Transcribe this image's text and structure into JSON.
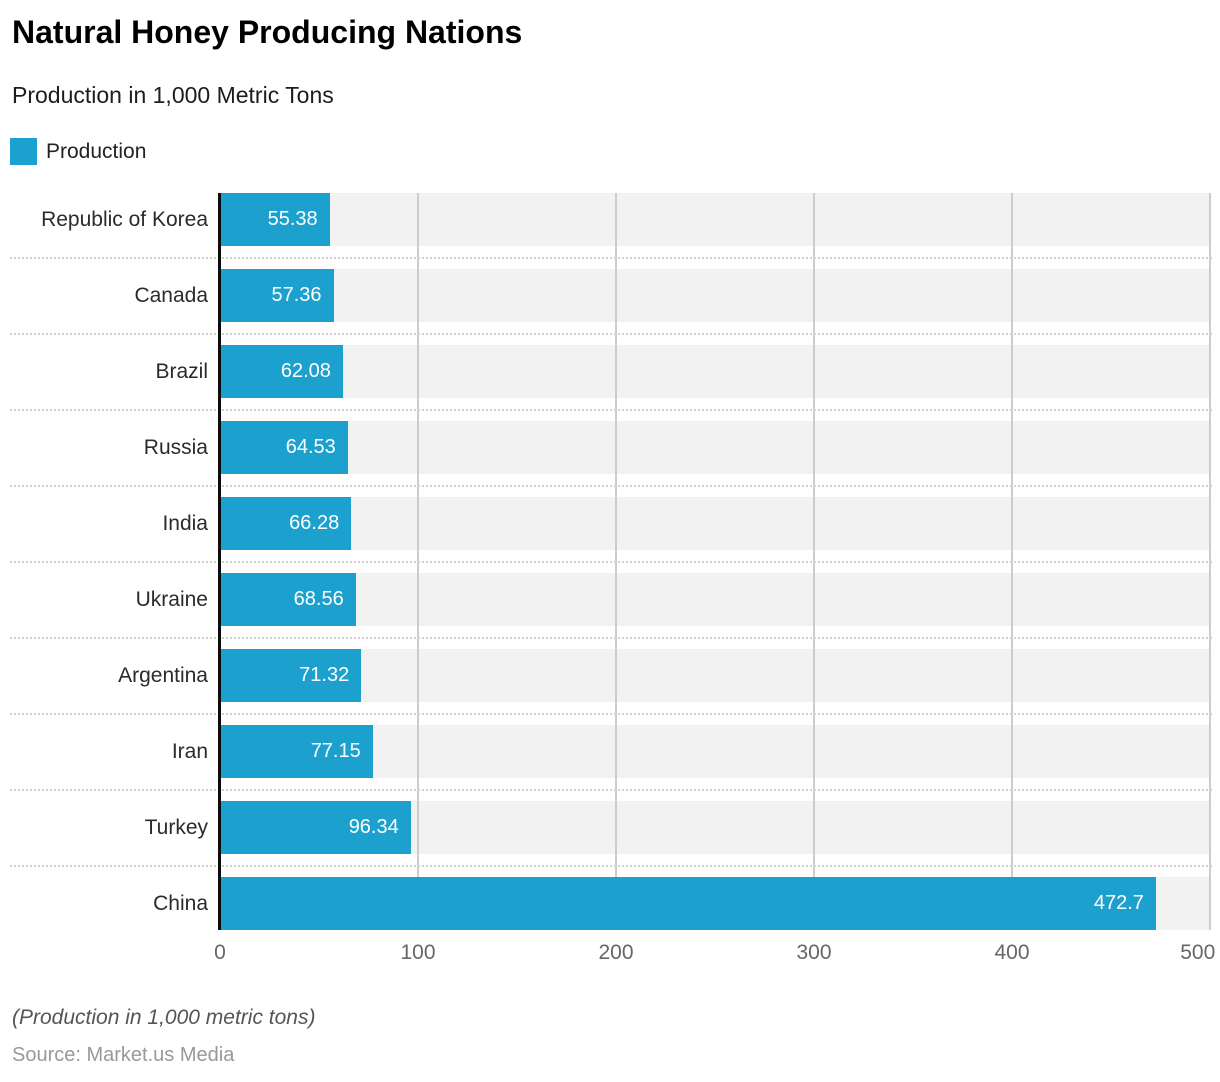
{
  "header": {
    "title": "Natural Honey Producing Nations",
    "subtitle": "Production in 1,000 Metric Tons"
  },
  "legend": {
    "label": "Production",
    "swatch_color": "#1CA0CD"
  },
  "chart_data": {
    "type": "bar",
    "orientation": "horizontal",
    "title": "Natural Honey Producing Nations",
    "subtitle": "Production in 1,000 Metric Tons",
    "series_name": "Production",
    "categories": [
      "Republic of Korea",
      "Canada",
      "Brazil",
      "Russia",
      "India",
      "Ukraine",
      "Argentina",
      "Iran",
      "Turkey",
      "China"
    ],
    "values": [
      55.38,
      57.36,
      62.08,
      64.53,
      66.28,
      68.56,
      71.32,
      77.15,
      96.34,
      472.7
    ],
    "xlabel": "",
    "ylabel": "",
    "xlim": [
      0,
      500
    ],
    "xticks": [
      0,
      100,
      200,
      300,
      400,
      500
    ],
    "bar_color": "#1CA0CD",
    "track_color": "#f2f2f2",
    "grid": true,
    "gridline_color": "#cccccc",
    "legend_position": "top-left",
    "value_labels": "inside-end-white"
  },
  "footer": {
    "note": "(Production in 1,000 metric tons)",
    "source": "Source: Market.us Media"
  }
}
